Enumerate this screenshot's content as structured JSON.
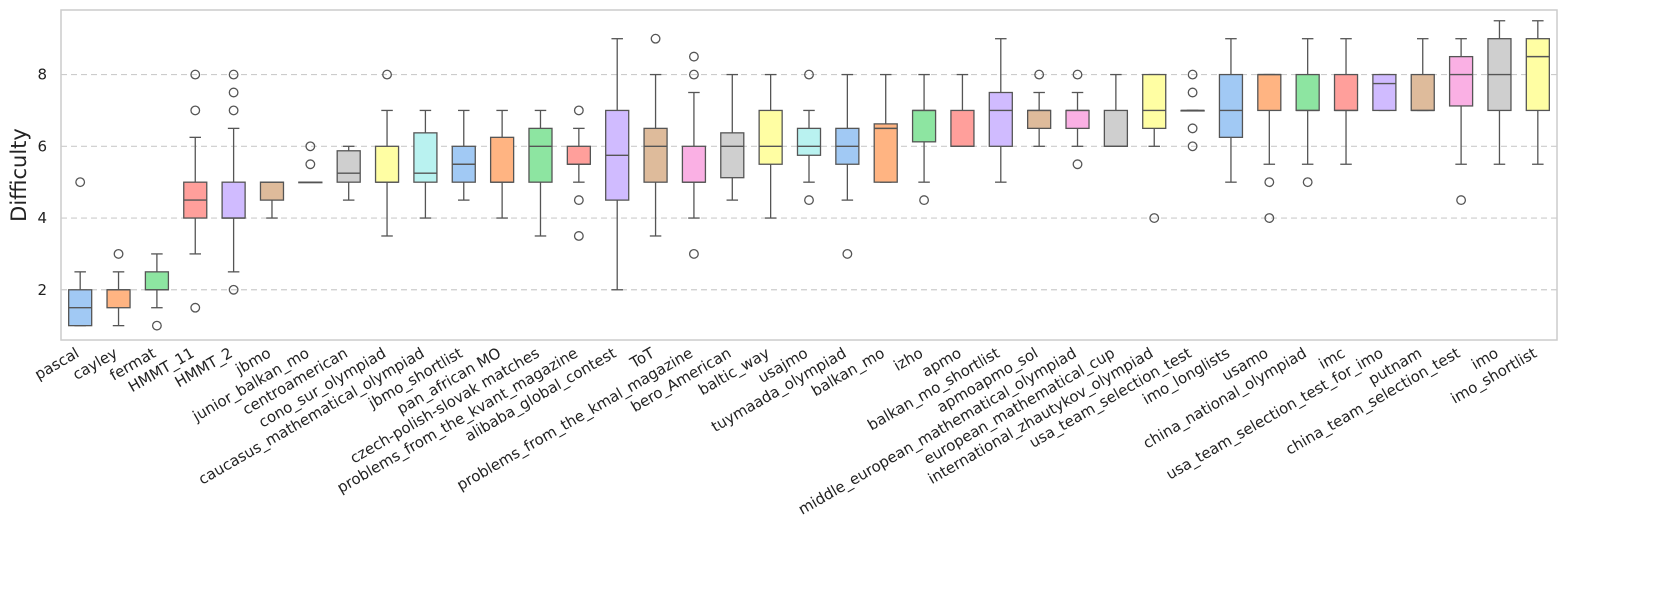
{
  "chart_data": {
    "type": "box",
    "ylabel": "Difficulty",
    "xlabel": "",
    "ylim": [
      0.6,
      9.8
    ],
    "yticks": [
      2,
      4,
      6,
      8
    ],
    "grid": "horizontal-dashed",
    "categories": [
      "pascal",
      "cayley",
      "fermat",
      "HMMT_11",
      "HMMT_2",
      "jbmo",
      "junior_balkan_mo",
      "centroamerican",
      "cono_sur_olympiad",
      "caucasus_mathematical_olympiad",
      "jbmo_shortlist",
      "pan_african MO",
      "czech-polish-slovak matches",
      "problems_from_the_kvant_magazine",
      "alibaba_global_contest",
      "ToT",
      "problems_from_the_kmal_magazine",
      "bero_American",
      "baltic_way",
      "usajmo",
      "tuymaada_olympiad",
      "balkan_mo",
      "izho",
      "apmo",
      "balkan_mo_shortlist",
      "apmoapmo_sol",
      "middle_european_mathematical_olympiad",
      "european_mathematical_cup",
      "international_zhautykov_olympiad",
      "usa_team_selection_test",
      "imo_longlists",
      "usamo",
      "china_national_olympiad",
      "imc",
      "usa_team_selection_test_for_imo",
      "putnam",
      "china_team_selection_test",
      "imo",
      "imo_shortlist"
    ],
    "boxes": [
      {
        "whislo": 1.0,
        "q1": 1.0,
        "med": 1.5,
        "q3": 2.0,
        "whishi": 2.5,
        "fliers": [
          5.0
        ]
      },
      {
        "whislo": 1.0,
        "q1": 1.5,
        "med": 2.0,
        "q3": 2.0,
        "whishi": 2.5,
        "fliers": [
          3.0
        ]
      },
      {
        "whislo": 1.5,
        "q1": 2.0,
        "med": 2.0,
        "q3": 2.5,
        "whishi": 3.0,
        "fliers": [
          1.0
        ]
      },
      {
        "whislo": 3.0,
        "q1": 4.0,
        "med": 4.5,
        "q3": 5.0,
        "whishi": 6.25,
        "fliers": [
          8.0,
          7.0,
          1.5
        ]
      },
      {
        "whislo": 2.5,
        "q1": 4.0,
        "med": 4.0,
        "q3": 5.0,
        "whishi": 6.5,
        "fliers": [
          8.0,
          7.5,
          7.0,
          2.0
        ]
      },
      {
        "whislo": 4.0,
        "q1": 4.5,
        "med": 5.0,
        "q3": 5.0,
        "whishi": 5.0,
        "fliers": []
      },
      {
        "whislo": 5.0,
        "q1": 5.0,
        "med": 5.0,
        "q3": 5.0,
        "whishi": 5.0,
        "fliers": [
          6.0,
          5.5
        ]
      },
      {
        "whislo": 4.5,
        "q1": 5.0,
        "med": 5.25,
        "q3": 5.875,
        "whishi": 6.0,
        "fliers": []
      },
      {
        "whislo": 3.5,
        "q1": 5.0,
        "med": 5.0,
        "q3": 6.0,
        "whishi": 7.0,
        "fliers": [
          8.0
        ]
      },
      {
        "whislo": 4.0,
        "q1": 5.0,
        "med": 5.25,
        "q3": 6.375,
        "whishi": 7.0,
        "fliers": []
      },
      {
        "whislo": 4.5,
        "q1": 5.0,
        "med": 5.5,
        "q3": 6.0,
        "whishi": 7.0,
        "fliers": []
      },
      {
        "whislo": 4.0,
        "q1": 5.0,
        "med": 5.0,
        "q3": 6.25,
        "whishi": 7.0,
        "fliers": []
      },
      {
        "whislo": 3.5,
        "q1": 5.0,
        "med": 6.0,
        "q3": 6.5,
        "whishi": 7.0,
        "fliers": []
      },
      {
        "whislo": 5.0,
        "q1": 5.5,
        "med": 5.5,
        "q3": 6.0,
        "whishi": 6.5,
        "fliers": [
          7.0,
          4.5,
          3.5
        ]
      },
      {
        "whislo": 2.0,
        "q1": 4.5,
        "med": 5.75,
        "q3": 7.0,
        "whishi": 9.0,
        "fliers": []
      },
      {
        "whislo": 3.5,
        "q1": 5.0,
        "med": 6.0,
        "q3": 6.5,
        "whishi": 8.0,
        "fliers": [
          9.0
        ]
      },
      {
        "whislo": 4.0,
        "q1": 5.0,
        "med": 5.0,
        "q3": 6.0,
        "whishi": 7.5,
        "fliers": [
          8.5,
          8.0,
          3.0
        ]
      },
      {
        "whislo": 4.5,
        "q1": 5.125,
        "med": 6.0,
        "q3": 6.375,
        "whishi": 8.0,
        "fliers": []
      },
      {
        "whislo": 4.0,
        "q1": 5.5,
        "med": 6.0,
        "q3": 7.0,
        "whishi": 8.0,
        "fliers": []
      },
      {
        "whislo": 5.0,
        "q1": 5.75,
        "med": 6.0,
        "q3": 6.5,
        "whishi": 7.0,
        "fliers": [
          8.0,
          4.5
        ]
      },
      {
        "whislo": 4.5,
        "q1": 5.5,
        "med": 6.0,
        "q3": 6.5,
        "whishi": 8.0,
        "fliers": [
          3.0
        ]
      },
      {
        "whislo": 5.0,
        "q1": 5.0,
        "med": 6.5,
        "q3": 6.625,
        "whishi": 8.0,
        "fliers": []
      },
      {
        "whislo": 5.0,
        "q1": 6.125,
        "med": 7.0,
        "q3": 7.0,
        "whishi": 8.0,
        "fliers": [
          4.5
        ]
      },
      {
        "whislo": 6.0,
        "q1": 6.0,
        "med": 6.0,
        "q3": 7.0,
        "whishi": 8.0,
        "fliers": []
      },
      {
        "whislo": 5.0,
        "q1": 6.0,
        "med": 7.0,
        "q3": 7.5,
        "whishi": 9.0,
        "fliers": []
      },
      {
        "whislo": 6.0,
        "q1": 6.5,
        "med": 7.0,
        "q3": 7.0,
        "whishi": 7.5,
        "fliers": [
          8.0
        ]
      },
      {
        "whislo": 6.0,
        "q1": 6.5,
        "med": 7.0,
        "q3": 7.0,
        "whishi": 7.5,
        "fliers": [
          8.0,
          5.5
        ]
      },
      {
        "whislo": 6.0,
        "q1": 6.0,
        "med": 6.0,
        "q3": 7.0,
        "whishi": 8.0,
        "fliers": []
      },
      {
        "whislo": 6.0,
        "q1": 6.5,
        "med": 7.0,
        "q3": 8.0,
        "whishi": 8.0,
        "fliers": [
          4.0
        ]
      },
      {
        "whislo": 7.0,
        "q1": 7.0,
        "med": 7.0,
        "q3": 7.0,
        "whishi": 7.0,
        "fliers": [
          8.0,
          7.5,
          6.5,
          6.0
        ]
      },
      {
        "whislo": 5.0,
        "q1": 6.25,
        "med": 7.0,
        "q3": 8.0,
        "whishi": 9.0,
        "fliers": []
      },
      {
        "whislo": 5.5,
        "q1": 7.0,
        "med": 8.0,
        "q3": 8.0,
        "whishi": 8.0,
        "fliers": [
          5.0,
          4.0
        ]
      },
      {
        "whislo": 5.5,
        "q1": 7.0,
        "med": 7.0,
        "q3": 8.0,
        "whishi": 9.0,
        "fliers": [
          5.0
        ]
      },
      {
        "whislo": 5.5,
        "q1": 7.0,
        "med": 7.0,
        "q3": 8.0,
        "whishi": 9.0,
        "fliers": []
      },
      {
        "whislo": 7.0,
        "q1": 7.0,
        "med": 7.75,
        "q3": 8.0,
        "whishi": 8.0,
        "fliers": []
      },
      {
        "whislo": 7.0,
        "q1": 7.0,
        "med": 7.0,
        "q3": 8.0,
        "whishi": 9.0,
        "fliers": []
      },
      {
        "whislo": 5.5,
        "q1": 7.125,
        "med": 8.0,
        "q3": 8.5,
        "whishi": 9.0,
        "fliers": [
          4.5
        ]
      },
      {
        "whislo": 5.5,
        "q1": 7.0,
        "med": 8.0,
        "q3": 9.0,
        "whishi": 9.5,
        "fliers": []
      },
      {
        "whislo": 5.5,
        "q1": 7.0,
        "med": 8.5,
        "q3": 9.0,
        "whishi": 9.5,
        "fliers": []
      }
    ],
    "palette": [
      "#a1c9f4",
      "#ffb482",
      "#8de5a1",
      "#ff9f9b",
      "#d0bbff",
      "#debb9b",
      "#fab0e4",
      "#cfcfcf",
      "#fffea3",
      "#b9f2f0"
    ],
    "line_color": "#555555",
    "grid_color": "#cccccc",
    "frame_color": "#cccccc"
  }
}
